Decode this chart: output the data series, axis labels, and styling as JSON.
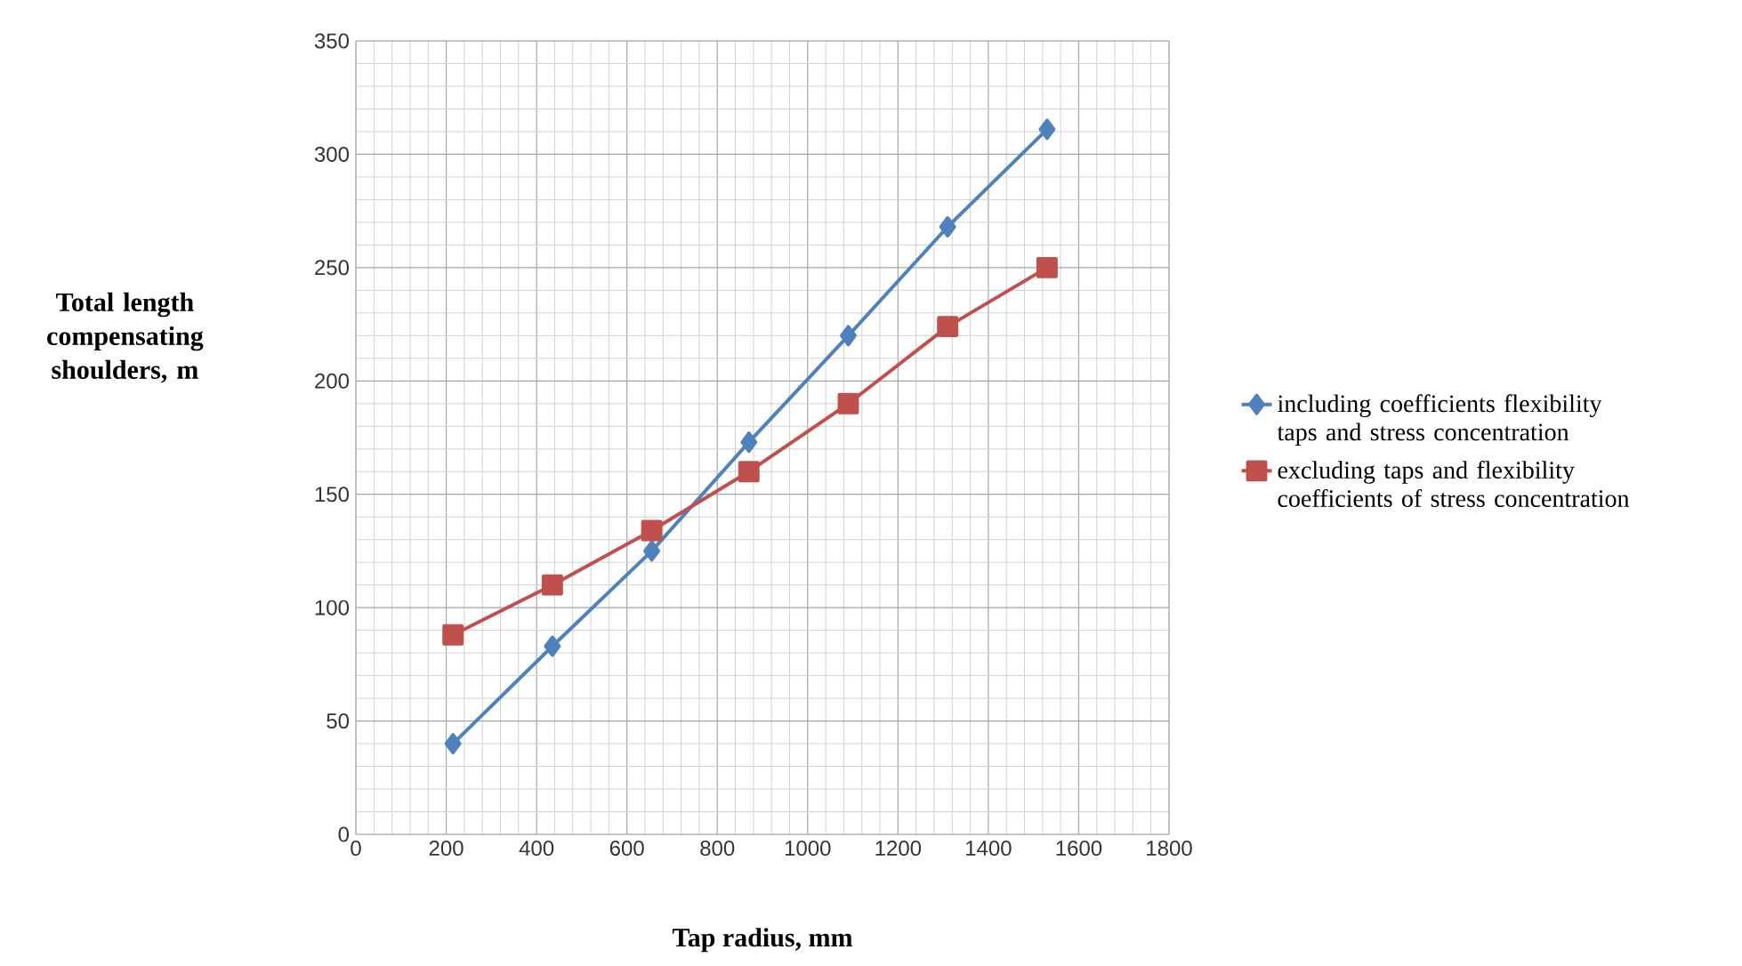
{
  "chart_data": {
    "type": "line",
    "xlabel": "Tap radius, mm",
    "ylabel": "Total length compensating shoulders, m",
    "x": [
      215,
      435,
      655,
      870,
      1090,
      1310,
      1530
    ],
    "series": [
      {
        "name": "including coefficients flexibility taps and stress concentration",
        "color": "#4f81bd",
        "marker": "diamond",
        "values": [
          40,
          83,
          125,
          173,
          220,
          268,
          311
        ]
      },
      {
        "name": "excluding taps and flexibility coefficients of stress concentration",
        "color": "#c0504d",
        "marker": "square",
        "values": [
          88,
          110,
          134,
          160,
          190,
          224,
          250
        ]
      }
    ],
    "xlim": [
      0,
      1800
    ],
    "xticks": [
      0,
      200,
      400,
      600,
      800,
      1000,
      1200,
      1400,
      1600,
      1800
    ],
    "ylim": [
      0,
      350
    ],
    "yticks": [
      0,
      50,
      100,
      150,
      200,
      250,
      300,
      350
    ],
    "grid": true,
    "legend": "right",
    "line_style": "solid"
  }
}
